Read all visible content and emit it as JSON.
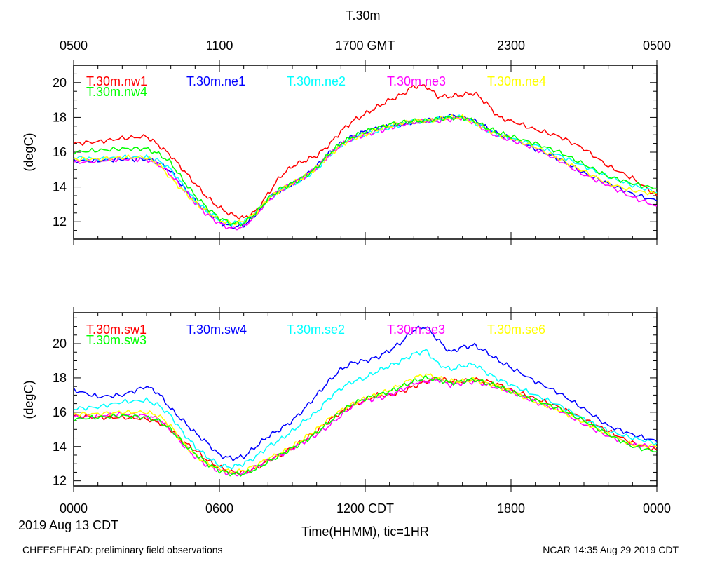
{
  "page": {
    "title": "T.30m",
    "date_label": "2019 Aug 13 CDT",
    "xlabel": "Time(HHMM), tic=1HR",
    "footer_left": "CHEESEHEAD: preliminary field observations",
    "footer_right": "NCAR 14:35 Aug 29 2019 CDT"
  },
  "chart_data": [
    {
      "type": "line",
      "title": "T.30m",
      "ylabel": "(degC)",
      "xlabel": "Time(HHMM), tic=1HR",
      "xlim": [
        0,
        24
      ],
      "ylim": [
        11,
        21
      ],
      "yticks": [
        12,
        14,
        16,
        18,
        20
      ],
      "top_axis_ticks": [
        {
          "hour": 0,
          "label": "0500"
        },
        {
          "hour": 6,
          "label": "1100"
        },
        {
          "hour": 12,
          "label": "1700 GMT"
        },
        {
          "hour": 18,
          "label": "2300"
        },
        {
          "hour": 24,
          "label": "0500"
        }
      ],
      "x_hours": [
        0,
        1,
        2,
        3,
        3.5,
        4,
        4.5,
        5,
        5.5,
        6,
        6.5,
        7,
        7.5,
        8,
        8.5,
        9,
        9.5,
        10,
        10.5,
        11,
        11.5,
        12,
        12.5,
        13,
        13.5,
        14,
        14.5,
        15,
        15.5,
        16,
        16.5,
        17,
        17.5,
        18,
        19,
        20,
        21,
        22,
        23,
        24
      ],
      "series": [
        {
          "name": "T.30m.nw1",
          "color": "#ff0000",
          "values": [
            16.5,
            16.6,
            16.8,
            16.9,
            16.4,
            15.8,
            15.0,
            14.2,
            13.4,
            12.8,
            12.4,
            12.2,
            12.6,
            13.6,
            14.6,
            15.2,
            15.5,
            15.8,
            16.4,
            17.2,
            17.8,
            18.2,
            18.6,
            19.0,
            19.3,
            19.8,
            19.8,
            19.2,
            19.2,
            19.3,
            19.4,
            18.8,
            18.0,
            17.8,
            17.3,
            16.9,
            16.2,
            15.2,
            14.5,
            13.5
          ]
        },
        {
          "name": "T.30m.ne1",
          "color": "#0000ff",
          "values": [
            15.5,
            15.5,
            15.6,
            15.6,
            15.4,
            14.9,
            14.0,
            13.2,
            12.6,
            12.0,
            11.7,
            11.8,
            12.4,
            13.3,
            13.8,
            14.2,
            14.6,
            15.2,
            15.9,
            16.5,
            16.9,
            17.2,
            17.4,
            17.5,
            17.6,
            17.7,
            17.8,
            17.9,
            18.1,
            18.0,
            17.8,
            17.4,
            17.0,
            16.8,
            16.2,
            15.6,
            14.8,
            14.2,
            13.6,
            13.2
          ]
        },
        {
          "name": "T.30m.ne2",
          "color": "#00ffff",
          "values": [
            15.7,
            15.6,
            15.7,
            15.7,
            15.5,
            15.0,
            14.1,
            13.2,
            12.6,
            12.1,
            11.9,
            12.0,
            12.5,
            13.3,
            13.8,
            14.1,
            14.5,
            15.0,
            15.8,
            16.4,
            16.8,
            17.0,
            17.2,
            17.4,
            17.6,
            17.8,
            17.8,
            17.9,
            18.0,
            18.0,
            17.7,
            17.3,
            17.0,
            16.8,
            16.4,
            15.8,
            15.2,
            14.6,
            14.1,
            13.7
          ]
        },
        {
          "name": "T.30m.ne3",
          "color": "#ff00ff",
          "values": [
            15.4,
            15.5,
            15.6,
            15.6,
            15.3,
            14.7,
            13.9,
            13.1,
            12.4,
            11.9,
            11.6,
            11.7,
            12.4,
            13.2,
            13.8,
            14.2,
            14.6,
            15.1,
            15.8,
            16.4,
            16.8,
            17.0,
            17.2,
            17.4,
            17.6,
            17.7,
            17.8,
            17.8,
            17.9,
            18.0,
            17.7,
            17.2,
            16.9,
            16.7,
            16.2,
            15.5,
            14.7,
            14.1,
            13.4,
            12.9
          ]
        },
        {
          "name": "T.30m.ne4",
          "color": "#ffff00",
          "values": [
            15.6,
            15.6,
            15.7,
            15.7,
            15.3,
            14.5,
            13.8,
            13.1,
            12.6,
            12.1,
            11.9,
            12.0,
            12.5,
            13.3,
            13.8,
            14.2,
            14.6,
            15.1,
            15.8,
            16.4,
            16.8,
            17.0,
            17.3,
            17.5,
            17.7,
            17.8,
            17.8,
            17.9,
            18.0,
            18.0,
            17.7,
            17.3,
            17.0,
            16.8,
            16.3,
            15.6,
            14.9,
            14.2,
            13.8,
            13.6
          ]
        },
        {
          "name": "T.30m.nw4",
          "color": "#00ff00",
          "values": [
            16.0,
            16.1,
            16.2,
            16.2,
            15.9,
            15.4,
            14.4,
            13.5,
            12.8,
            12.2,
            11.9,
            11.9,
            12.5,
            13.3,
            13.9,
            14.2,
            14.6,
            15.1,
            15.9,
            16.5,
            16.9,
            17.2,
            17.4,
            17.6,
            17.7,
            17.8,
            17.8,
            17.9,
            18.0,
            18.0,
            17.8,
            17.4,
            17.1,
            16.9,
            16.5,
            16.0,
            15.3,
            14.6,
            14.2,
            13.9
          ]
        }
      ]
    },
    {
      "type": "line",
      "ylabel": "(degC)",
      "xlim": [
        0,
        24
      ],
      "ylim": [
        11.7,
        21.8
      ],
      "yticks": [
        12,
        14,
        16,
        18,
        20
      ],
      "bottom_axis_ticks": [
        {
          "hour": 0,
          "label": "0000"
        },
        {
          "hour": 6,
          "label": "0600"
        },
        {
          "hour": 12,
          "label": "1200 CDT"
        },
        {
          "hour": 18,
          "label": "1800"
        },
        {
          "hour": 24,
          "label": "0000"
        }
      ],
      "x_hours": [
        0,
        1,
        2,
        3,
        3.5,
        4,
        4.5,
        5,
        5.5,
        6,
        6.5,
        7,
        7.5,
        8,
        8.5,
        9,
        9.5,
        10,
        10.5,
        11,
        11.5,
        12,
        12.5,
        13,
        13.5,
        14,
        14.5,
        15,
        15.5,
        16,
        16.5,
        17,
        17.5,
        18,
        19,
        20,
        21,
        22,
        23,
        24
      ],
      "series": [
        {
          "name": "T.30m.sw1",
          "color": "#ff0000",
          "values": [
            15.8,
            15.7,
            15.7,
            15.6,
            15.4,
            15.0,
            14.3,
            13.8,
            13.2,
            12.8,
            12.5,
            12.5,
            12.7,
            13.2,
            13.5,
            13.9,
            14.4,
            14.9,
            15.5,
            16.0,
            16.4,
            16.7,
            17.0,
            17.0,
            17.2,
            17.5,
            17.8,
            18.0,
            17.8,
            17.8,
            17.9,
            17.8,
            17.6,
            17.3,
            16.8,
            16.3,
            15.6,
            14.9,
            14.2,
            13.8
          ]
        },
        {
          "name": "T.30m.sw4",
          "color": "#0000ff",
          "values": [
            17.3,
            16.9,
            17.0,
            17.5,
            17.1,
            16.2,
            15.5,
            14.8,
            14.2,
            13.5,
            13.3,
            13.4,
            14.0,
            14.6,
            15.0,
            15.5,
            16.2,
            17.0,
            17.8,
            18.5,
            18.9,
            19.0,
            19.2,
            19.6,
            20.1,
            20.8,
            21.0,
            20.2,
            19.5,
            19.8,
            19.9,
            19.5,
            19.0,
            18.6,
            17.8,
            17.1,
            16.2,
            15.2,
            14.7,
            14.3
          ]
        },
        {
          "name": "T.30m.se2",
          "color": "#00ffff",
          "values": [
            16.2,
            16.3,
            16.6,
            16.7,
            16.4,
            15.8,
            14.8,
            14.0,
            13.4,
            12.9,
            12.8,
            13.0,
            13.4,
            14.0,
            14.4,
            14.9,
            15.5,
            16.0,
            16.8,
            17.4,
            17.8,
            18.0,
            18.4,
            18.7,
            19.0,
            19.4,
            19.6,
            18.8,
            18.5,
            18.7,
            18.8,
            18.3,
            17.9,
            17.6,
            17.0,
            16.4,
            15.6,
            14.9,
            14.5,
            14.2
          ]
        },
        {
          "name": "T.30m.se3",
          "color": "#ff00ff",
          "values": [
            15.7,
            15.8,
            15.9,
            15.8,
            15.6,
            15.0,
            14.1,
            13.4,
            12.9,
            12.6,
            12.4,
            12.4,
            12.8,
            13.2,
            13.5,
            13.9,
            14.3,
            14.7,
            15.2,
            15.8,
            16.4,
            16.7,
            16.8,
            17.0,
            17.3,
            17.7,
            17.8,
            17.9,
            17.6,
            17.7,
            17.8,
            17.6,
            17.4,
            17.2,
            16.6,
            16.1,
            15.3,
            14.6,
            14.1,
            14.0
          ]
        },
        {
          "name": "T.30m.se6",
          "color": "#ffff00",
          "values": [
            15.9,
            15.9,
            16.0,
            16.0,
            15.8,
            15.2,
            14.2,
            13.5,
            13.0,
            12.7,
            12.5,
            12.6,
            12.9,
            13.3,
            13.6,
            14.0,
            14.5,
            15.0,
            15.6,
            16.1,
            16.5,
            16.8,
            17.0,
            17.3,
            17.6,
            18.0,
            18.2,
            18.0,
            17.8,
            17.8,
            17.9,
            17.7,
            17.5,
            17.2,
            16.6,
            16.1,
            15.4,
            14.7,
            14.1,
            14.0
          ]
        },
        {
          "name": "T.30m.sw3",
          "color": "#00ff00",
          "values": [
            15.6,
            15.7,
            15.8,
            15.7,
            15.5,
            15.0,
            14.2,
            13.6,
            13.0,
            12.6,
            12.4,
            12.4,
            12.7,
            13.1,
            13.5,
            13.9,
            14.3,
            14.8,
            15.4,
            16.0,
            16.5,
            16.8,
            17.0,
            17.2,
            17.5,
            17.8,
            18.0,
            17.9,
            17.7,
            17.8,
            17.9,
            17.7,
            17.5,
            17.2,
            16.7,
            16.2,
            15.5,
            14.7,
            14.0,
            13.7
          ]
        }
      ]
    }
  ]
}
